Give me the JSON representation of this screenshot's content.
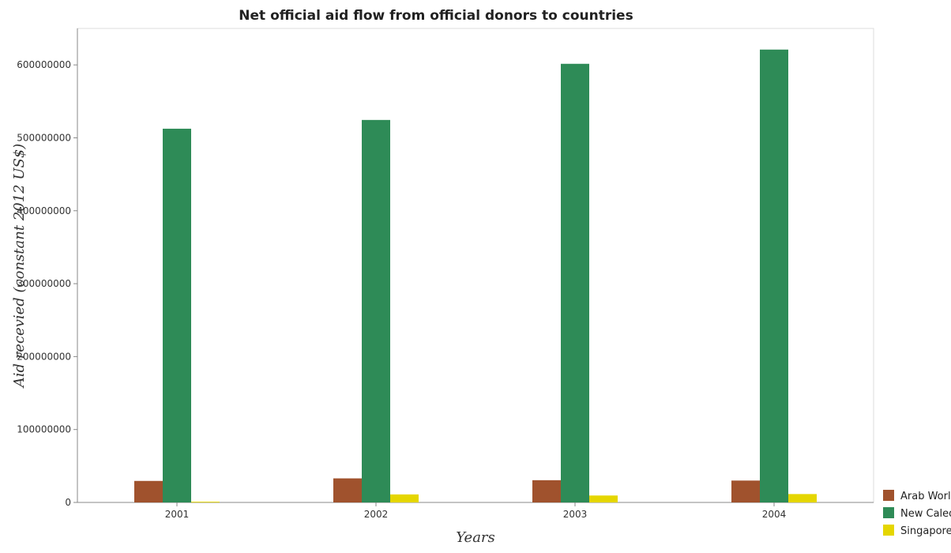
{
  "chart_data": {
    "type": "bar",
    "title": "Net official aid flow from official donors to countries",
    "xlabel": "Years",
    "ylabel": "Aid recevied (constant 2012 US$)",
    "categories": [
      "2001",
      "2002",
      "2003",
      "2004"
    ],
    "series": [
      {
        "name": "Arab World",
        "color": "#a0522d",
        "values": [
          29500000,
          33000000,
          30500000,
          30000000
        ]
      },
      {
        "name": "New Caledonia",
        "color": "#2e8b57",
        "values": [
          512500000,
          524500000,
          601500000,
          621000000
        ]
      },
      {
        "name": "Singapore",
        "color": "#e5d600",
        "values": [
          1000000,
          11000000,
          9500000,
          11500000
        ]
      }
    ],
    "ylim": [
      0,
      650000000
    ],
    "yticks": [
      0,
      100000000,
      200000000,
      300000000,
      400000000,
      500000000,
      600000000
    ],
    "ytick_labels": [
      "0",
      "100000000",
      "200000000",
      "300000000",
      "400000000",
      "500000000",
      "600000000"
    ],
    "grid": false,
    "legend_position": "bottom-right"
  }
}
